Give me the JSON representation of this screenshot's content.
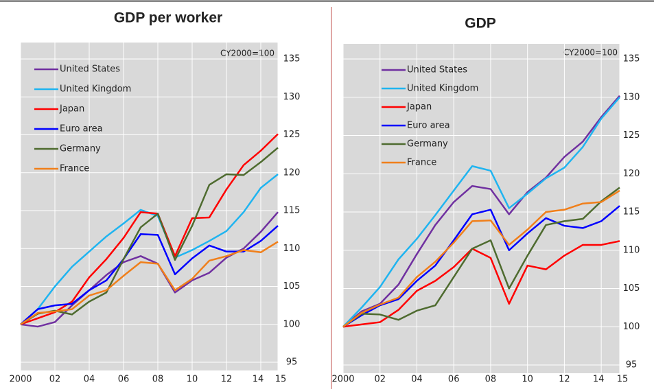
{
  "chart_data": [
    {
      "type": "line",
      "title": "GDP per worker",
      "annotation": "CY2000=100",
      "x": [
        2000,
        2001,
        2002,
        2003,
        2004,
        2005,
        2006,
        2007,
        2008,
        2009,
        2010,
        2011,
        2012,
        2013,
        2014,
        2015
      ],
      "xlim": [
        2000,
        2015
      ],
      "xticks": [
        2000,
        {
          "value": 2002,
          "label": "02"
        },
        {
          "value": 2004,
          "label": "04"
        },
        {
          "value": 2006,
          "label": "06"
        },
        {
          "value": 2008,
          "label": "08"
        },
        {
          "value": 2010,
          "label": "10"
        },
        {
          "value": 2012,
          "label": "12"
        },
        {
          "value": 2014,
          "label": "14"
        },
        {
          "value": 2015,
          "label": "15"
        }
      ],
      "ylim": [
        95,
        135
      ],
      "yticks": [
        95,
        100,
        105,
        110,
        115,
        120,
        125,
        130,
        135
      ],
      "grid": true,
      "series": [
        {
          "name": "United States",
          "color": "#7030a0",
          "values": [
            100,
            99.7,
            100.3,
            102.5,
            104.5,
            106.5,
            108.2,
            109,
            108,
            104.2,
            105.8,
            106.8,
            108.8,
            110,
            112.2,
            114.8
          ]
        },
        {
          "name": "United Kingdom",
          "color": "#1fb4f0",
          "values": [
            100,
            102,
            105,
            107.6,
            109.6,
            111.6,
            113.3,
            115.1,
            114.3,
            108.8,
            109.8,
            111,
            112.3,
            114.8,
            118,
            119.8
          ]
        },
        {
          "name": "Japan",
          "color": "#ff0000",
          "values": [
            100,
            100.8,
            101.6,
            103,
            106.2,
            108.6,
            111.4,
            114.8,
            114.6,
            109,
            114,
            114.1,
            117.8,
            121,
            122.9,
            125.1
          ]
        },
        {
          "name": "Euro area",
          "color": "#0000ff",
          "values": [
            100,
            102,
            102.5,
            102.7,
            104.5,
            105.8,
            108.6,
            111.9,
            111.8,
            106.6,
            108.7,
            110.4,
            109.6,
            109.6,
            111,
            113
          ]
        },
        {
          "name": "Germany",
          "color": "#4e6b2f",
          "values": [
            100,
            101.4,
            101.8,
            101.3,
            103,
            104.2,
            108.6,
            112.8,
            114.6,
            108.5,
            113,
            118.4,
            119.8,
            119.7,
            121.4,
            123.3
          ]
        },
        {
          "name": "France",
          "color": "#f07f1a",
          "values": [
            100,
            101.5,
            101.7,
            102,
            103.8,
            104.5,
            106.4,
            108.2,
            108,
            104.5,
            106,
            108.4,
            109,
            109.8,
            109.5,
            110.9
          ]
        }
      ]
    },
    {
      "type": "line",
      "title": "GDP",
      "annotation": "CY2000=100",
      "x": [
        2000,
        2001,
        2002,
        2003,
        2004,
        2005,
        2006,
        2007,
        2008,
        2009,
        2010,
        2011,
        2012,
        2013,
        2014,
        2015
      ],
      "xlim": [
        2000,
        2015
      ],
      "xticks": [
        2000,
        {
          "value": 2002,
          "label": "02"
        },
        {
          "value": 2004,
          "label": "04"
        },
        {
          "value": 2006,
          "label": "06"
        },
        {
          "value": 2008,
          "label": "08"
        },
        {
          "value": 2010,
          "label": "10"
        },
        {
          "value": 2012,
          "label": "12"
        },
        {
          "value": 2014,
          "label": "14"
        },
        {
          "value": 2015,
          "label": "15"
        }
      ],
      "ylim": [
        95,
        135
      ],
      "yticks": [
        95,
        100,
        105,
        110,
        115,
        120,
        125,
        130,
        135
      ],
      "grid": true,
      "series": [
        {
          "name": "United States",
          "color": "#7030a0",
          "values": [
            100,
            102,
            103,
            105.5,
            109.5,
            113.3,
            116.3,
            118.4,
            118,
            114.7,
            117.6,
            119.5,
            122.2,
            124.2,
            127.4,
            130.2
          ]
        },
        {
          "name": "United Kingdom",
          "color": "#1fb4f0",
          "values": [
            100,
            102.5,
            105.2,
            108.8,
            111.5,
            114.6,
            117.8,
            121,
            120.4,
            115.5,
            117.4,
            119.4,
            120.8,
            123.5,
            127.2,
            130
          ]
        },
        {
          "name": "Japan",
          "color": "#ff0000",
          "values": [
            100,
            100.3,
            100.6,
            102.2,
            104.7,
            106,
            107.8,
            110.2,
            109,
            103,
            108,
            107.5,
            109.3,
            110.7,
            110.7,
            111.2
          ]
        },
        {
          "name": "Euro area",
          "color": "#0000ff",
          "values": [
            100,
            101.5,
            102.8,
            103.6,
            106,
            108,
            111.3,
            114.7,
            115.3,
            110,
            112.2,
            114.2,
            113.2,
            112.9,
            113.8,
            115.8
          ]
        },
        {
          "name": "Germany",
          "color": "#4e6b2f",
          "values": [
            100,
            101.7,
            101.6,
            100.9,
            102.1,
            102.8,
            106.5,
            110.2,
            111.3,
            105,
            109.3,
            113.3,
            113.8,
            114.1,
            116.4,
            118.2
          ]
        },
        {
          "name": "France",
          "color": "#f07f1a",
          "values": [
            100,
            101.8,
            102.9,
            103.8,
            106.5,
            108.5,
            111,
            113.8,
            113.9,
            110.7,
            112.7,
            115,
            115.3,
            116.1,
            116.3,
            117.8
          ]
        }
      ]
    }
  ]
}
